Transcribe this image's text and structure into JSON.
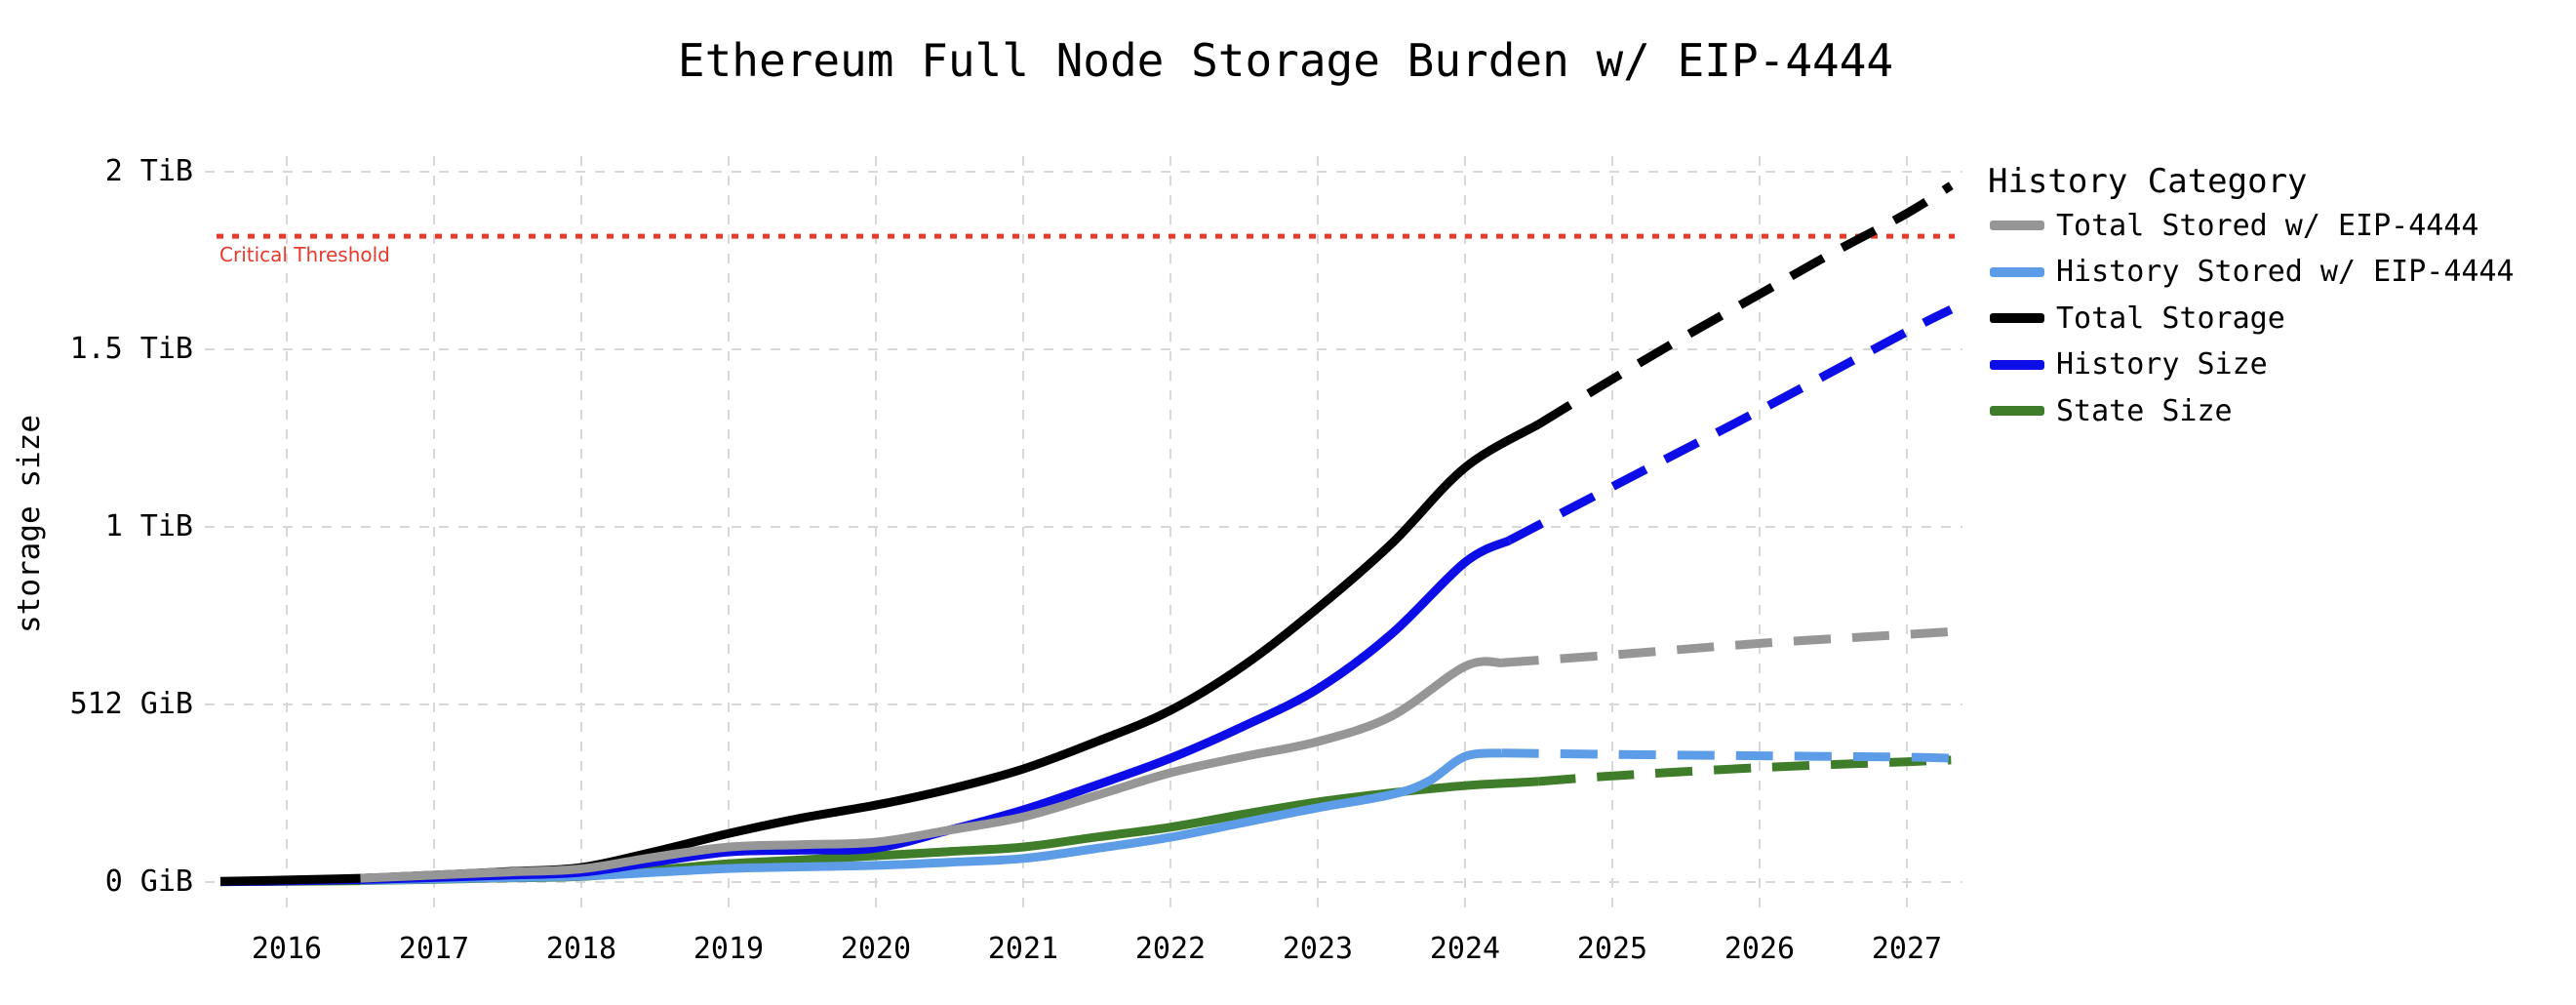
{
  "title": "Ethereum Full Node Storage Burden w/ EIP-4444",
  "y_axis": {
    "label": "storage size",
    "ticks": [
      {
        "label": "0 GiB",
        "gib": 0
      },
      {
        "label": "512 GiB",
        "gib": 512
      },
      {
        "label": "1 TiB",
        "gib": 1024
      },
      {
        "label": "1.5 TiB",
        "gib": 1536
      },
      {
        "label": "2 TiB",
        "gib": 2048
      }
    ]
  },
  "x_axis": {
    "ticks": [
      "2016",
      "2017",
      "2018",
      "2019",
      "2020",
      "2021",
      "2022",
      "2023",
      "2024",
      "2025",
      "2026",
      "2027"
    ]
  },
  "threshold": {
    "label": "Critical Threshold",
    "gib": 1862,
    "color": "#e8392b"
  },
  "legend": {
    "title": "History Category",
    "items": [
      {
        "label": "Total Stored w/ EIP-4444",
        "color": "#969696"
      },
      {
        "label": "History Stored w/ EIP-4444",
        "color": "#5d9ce6"
      },
      {
        "label": "Total Storage",
        "color": "#000000"
      },
      {
        "label": "History Size",
        "color": "#0d0de8"
      },
      {
        "label": "State Size",
        "color": "#3f7d2b"
      }
    ]
  },
  "chart_data": {
    "type": "line",
    "title": "Ethereum Full Node Storage Burden w/ EIP-4444",
    "xlabel": "",
    "ylabel": "storage size",
    "x_unit": "year",
    "y_unit": "GiB",
    "x_range": [
      2015.5,
      2027.4
    ],
    "ylim_gib": [
      0,
      2048
    ],
    "grid": true,
    "grid_color": "#d8d8d8",
    "legend_position": "right",
    "projection_style": "dashed",
    "threshold_line": {
      "label": "Critical Threshold",
      "value_gib": 1862,
      "color": "#e8392b",
      "style": "dotted"
    },
    "draw_order": [
      4,
      1,
      3,
      2,
      0
    ],
    "series": [
      {
        "name": "Total Stored w/ EIP-4444",
        "color": "#969696",
        "solid": [
          [
            2016.5,
            11
          ],
          [
            2017,
            20
          ],
          [
            2017.5,
            29
          ],
          [
            2018,
            38
          ],
          [
            2018.5,
            72
          ],
          [
            2019,
            101
          ],
          [
            2019.5,
            108
          ],
          [
            2020,
            115
          ],
          [
            2020.5,
            150
          ],
          [
            2021,
            188
          ],
          [
            2021.5,
            250
          ],
          [
            2022,
            315
          ],
          [
            2022.5,
            362
          ],
          [
            2023,
            405
          ],
          [
            2023.5,
            478
          ],
          [
            2024,
            622
          ],
          [
            2024.25,
            632
          ]
        ],
        "projected": [
          [
            2024.25,
            632
          ],
          [
            2025,
            655
          ],
          [
            2026,
            688
          ],
          [
            2027,
            714
          ],
          [
            2027.3,
            722
          ]
        ]
      },
      {
        "name": "History Stored w/ EIP-4444",
        "color": "#5d9ce6",
        "solid": [
          [
            2016.5,
            5
          ],
          [
            2017,
            9
          ],
          [
            2017.5,
            13
          ],
          [
            2018,
            17
          ],
          [
            2018.5,
            28
          ],
          [
            2019,
            39
          ],
          [
            2019.5,
            44
          ],
          [
            2020,
            48
          ],
          [
            2020.5,
            57
          ],
          [
            2021,
            68
          ],
          [
            2021.5,
            97
          ],
          [
            2022,
            129
          ],
          [
            2022.5,
            172
          ],
          [
            2023,
            214
          ],
          [
            2023.5,
            252
          ],
          [
            2023.75,
            290
          ],
          [
            2024,
            362
          ],
          [
            2024.25,
            372
          ]
        ],
        "projected": [
          [
            2024.25,
            372
          ],
          [
            2025,
            368
          ],
          [
            2026,
            364
          ],
          [
            2027,
            360
          ],
          [
            2027.3,
            357
          ]
        ]
      },
      {
        "name": "Total Storage",
        "color": "#000000",
        "solid": [
          [
            2015.55,
            2
          ],
          [
            2016,
            6
          ],
          [
            2016.5,
            11
          ],
          [
            2017,
            20
          ],
          [
            2017.5,
            30
          ],
          [
            2018,
            42
          ],
          [
            2018.5,
            88
          ],
          [
            2019,
            140
          ],
          [
            2019.5,
            185
          ],
          [
            2020,
            222
          ],
          [
            2020.5,
            268
          ],
          [
            2021,
            326
          ],
          [
            2021.5,
            405
          ],
          [
            2022,
            495
          ],
          [
            2022.5,
            625
          ],
          [
            2023,
            790
          ],
          [
            2023.5,
            975
          ],
          [
            2024,
            1195
          ],
          [
            2024.5,
            1320
          ]
        ],
        "projected": [
          [
            2024.5,
            1320
          ],
          [
            2025,
            1450
          ],
          [
            2025.5,
            1575
          ],
          [
            2026,
            1695
          ],
          [
            2026.5,
            1815
          ],
          [
            2027,
            1928
          ],
          [
            2027.3,
            2008
          ]
        ]
      },
      {
        "name": "History Size",
        "color": "#0d0de8",
        "solid": [
          [
            2015.55,
            1
          ],
          [
            2016,
            3
          ],
          [
            2016.5,
            7
          ],
          [
            2017,
            13
          ],
          [
            2017.5,
            20
          ],
          [
            2018,
            28
          ],
          [
            2018.5,
            58
          ],
          [
            2019,
            87
          ],
          [
            2019.5,
            92
          ],
          [
            2020,
            98
          ],
          [
            2020.5,
            150
          ],
          [
            2021,
            208
          ],
          [
            2021.5,
            280
          ],
          [
            2022,
            357
          ],
          [
            2022.5,
            450
          ],
          [
            2023,
            557
          ],
          [
            2023.5,
            715
          ],
          [
            2024,
            922
          ],
          [
            2024.3,
            985
          ]
        ],
        "projected": [
          [
            2024.3,
            985
          ],
          [
            2025,
            1140
          ],
          [
            2026,
            1360
          ],
          [
            2027,
            1587
          ],
          [
            2027.3,
            1651
          ]
        ]
      },
      {
        "name": "State Size",
        "color": "#3f7d2b",
        "solid": [
          [
            2015.55,
            1
          ],
          [
            2016,
            2
          ],
          [
            2016.5,
            4
          ],
          [
            2017,
            8
          ],
          [
            2017.5,
            12
          ],
          [
            2018,
            16
          ],
          [
            2018.5,
            34
          ],
          [
            2019,
            53
          ],
          [
            2019.5,
            64
          ],
          [
            2020,
            76
          ],
          [
            2020.5,
            88
          ],
          [
            2021,
            101
          ],
          [
            2021.5,
            130
          ],
          [
            2022,
            158
          ],
          [
            2022.5,
            196
          ],
          [
            2023,
            231
          ],
          [
            2023.5,
            257
          ],
          [
            2024,
            278
          ],
          [
            2024.5,
            290
          ]
        ],
        "projected": [
          [
            2024.5,
            290
          ],
          [
            2025,
            306
          ],
          [
            2026,
            330
          ],
          [
            2027,
            347
          ],
          [
            2027.3,
            352
          ]
        ]
      }
    ]
  }
}
